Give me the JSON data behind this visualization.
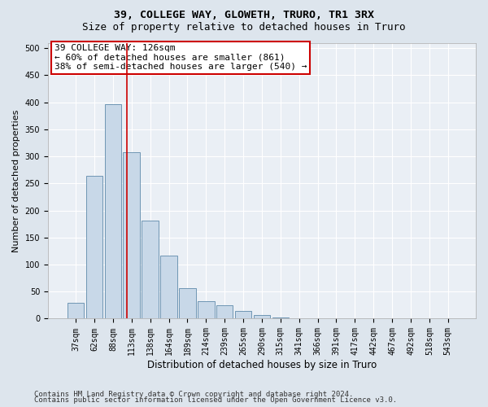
{
  "title": "39, COLLEGE WAY, GLOWETH, TRURO, TR1 3RX",
  "subtitle": "Size of property relative to detached houses in Truro",
  "xlabel": "Distribution of detached houses by size in Truro",
  "ylabel": "Number of detached properties",
  "footer1": "Contains HM Land Registry data © Crown copyright and database right 2024.",
  "footer2": "Contains public sector information licensed under the Open Government Licence v3.0.",
  "categories": [
    "37sqm",
    "62sqm",
    "88sqm",
    "113sqm",
    "138sqm",
    "164sqm",
    "189sqm",
    "214sqm",
    "239sqm",
    "265sqm",
    "290sqm",
    "315sqm",
    "341sqm",
    "366sqm",
    "391sqm",
    "417sqm",
    "442sqm",
    "467sqm",
    "492sqm",
    "518sqm",
    "543sqm"
  ],
  "values": [
    30,
    264,
    396,
    307,
    181,
    116,
    57,
    32,
    25,
    14,
    6,
    2,
    1,
    1,
    0,
    0,
    0,
    0,
    0,
    0,
    1
  ],
  "bar_color": "#c8d8e8",
  "bar_edge_color": "#5f8aaa",
  "vline_x": 2.75,
  "vline_color": "#cc0000",
  "annotation_text": "39 COLLEGE WAY: 126sqm\n← 60% of detached houses are smaller (861)\n38% of semi-detached houses are larger (540) →",
  "annotation_box_facecolor": "#ffffff",
  "annotation_box_edgecolor": "#cc0000",
  "annotation_fontsize": 8,
  "bg_color": "#dde5ed",
  "plot_bg_color": "#eaeff5",
  "grid_color": "#ffffff",
  "ylim": [
    0,
    510
  ],
  "yticks": [
    0,
    50,
    100,
    150,
    200,
    250,
    300,
    350,
    400,
    450,
    500
  ],
  "title_fontsize": 9.5,
  "subtitle_fontsize": 9,
  "xlabel_fontsize": 8.5,
  "ylabel_fontsize": 8,
  "tick_fontsize": 7,
  "footer_fontsize": 6.5
}
